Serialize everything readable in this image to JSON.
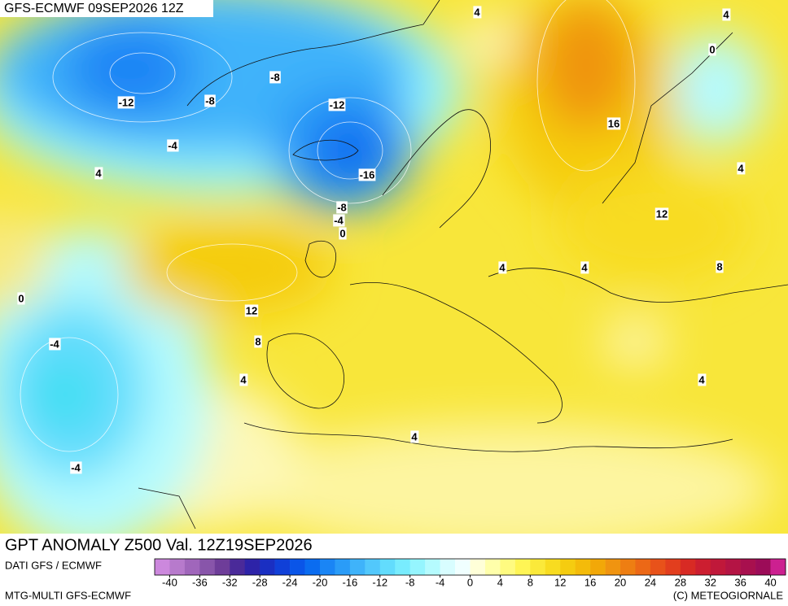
{
  "header": {
    "title": "GFS-ECMWF 09SEP2026 12Z"
  },
  "map": {
    "contour_labels": [
      4,
      4,
      0,
      -8,
      -12,
      -8,
      -12,
      16,
      -4,
      4,
      4,
      -16,
      -8,
      12,
      -4,
      0,
      4,
      4,
      8,
      0,
      12,
      -4,
      8,
      4,
      4,
      4,
      -4
    ]
  },
  "footer": {
    "title": "GPT ANOMALY Z500 Val. 12Z19SEP2026",
    "source": "DATI GFS / ECMWF",
    "model": "MTG-MULTI GFS-ECMWF",
    "copyright": "(C) METEOGIORNALE"
  },
  "colorbar": {
    "range": [
      -42,
      42
    ],
    "ticks": [
      -40,
      -36,
      -32,
      -28,
      -24,
      -20,
      -16,
      -12,
      -8,
      -4,
      0,
      4,
      8,
      12,
      16,
      20,
      24,
      28,
      32,
      36,
      40
    ],
    "colors": [
      "#cc88dd",
      "#b77acc",
      "#a066bb",
      "#8855aa",
      "#6e3d99",
      "#4a2a99",
      "#2d23a8",
      "#1a2fc2",
      "#1040d8",
      "#0a55e8",
      "#0a6cf0",
      "#1a85f5",
      "#2a9cf8",
      "#3fb3fa",
      "#52c8fc",
      "#62dcfd",
      "#78ecfe",
      "#95f5fe",
      "#b5fbfe",
      "#d8fdff",
      "#f0ffff",
      "#ffffd8",
      "#ffffaa",
      "#fffb80",
      "#fff555",
      "#fbe93a",
      "#f8dc20",
      "#f5cc10",
      "#f4bb0a",
      "#f2a808",
      "#f09410",
      "#ee7e12",
      "#ec6816",
      "#e8521a",
      "#e23e1e",
      "#d82a24",
      "#cc1e30",
      "#c0183a",
      "#b41444",
      "#a8104e",
      "#9c0c58",
      "#cc2090"
    ]
  }
}
